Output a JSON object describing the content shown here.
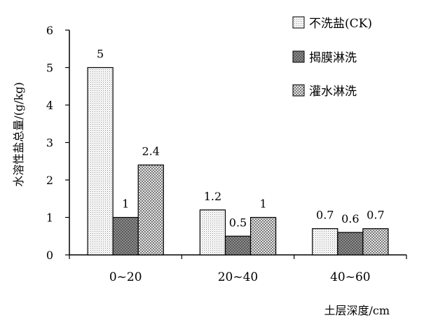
{
  "chart_data": {
    "type": "bar",
    "categories": [
      "0~20",
      "20~40",
      "40~60"
    ],
    "series": [
      {
        "name": "不洗盐(CK)",
        "values": [
          5,
          1.2,
          0.7
        ],
        "pattern": "dots"
      },
      {
        "name": "揭膜淋洗",
        "values": [
          1,
          0.5,
          0.6
        ],
        "pattern": "dark"
      },
      {
        "name": "灌水淋洗",
        "values": [
          2.4,
          1,
          0.7
        ],
        "pattern": "check"
      }
    ],
    "data_labels": [
      [
        "5",
        "1.2",
        "0.7"
      ],
      [
        "1",
        "0.5",
        "0.6"
      ],
      [
        "2.4",
        "1",
        "0.7"
      ]
    ],
    "xlabel": "土层深度/cm",
    "ylabel": "水溶性盐总量/(g/kg)",
    "ylim": [
      0,
      6
    ],
    "yticks": [
      0,
      1,
      2,
      3,
      4,
      5,
      6
    ],
    "grid": false,
    "legend_position": "top-right"
  }
}
